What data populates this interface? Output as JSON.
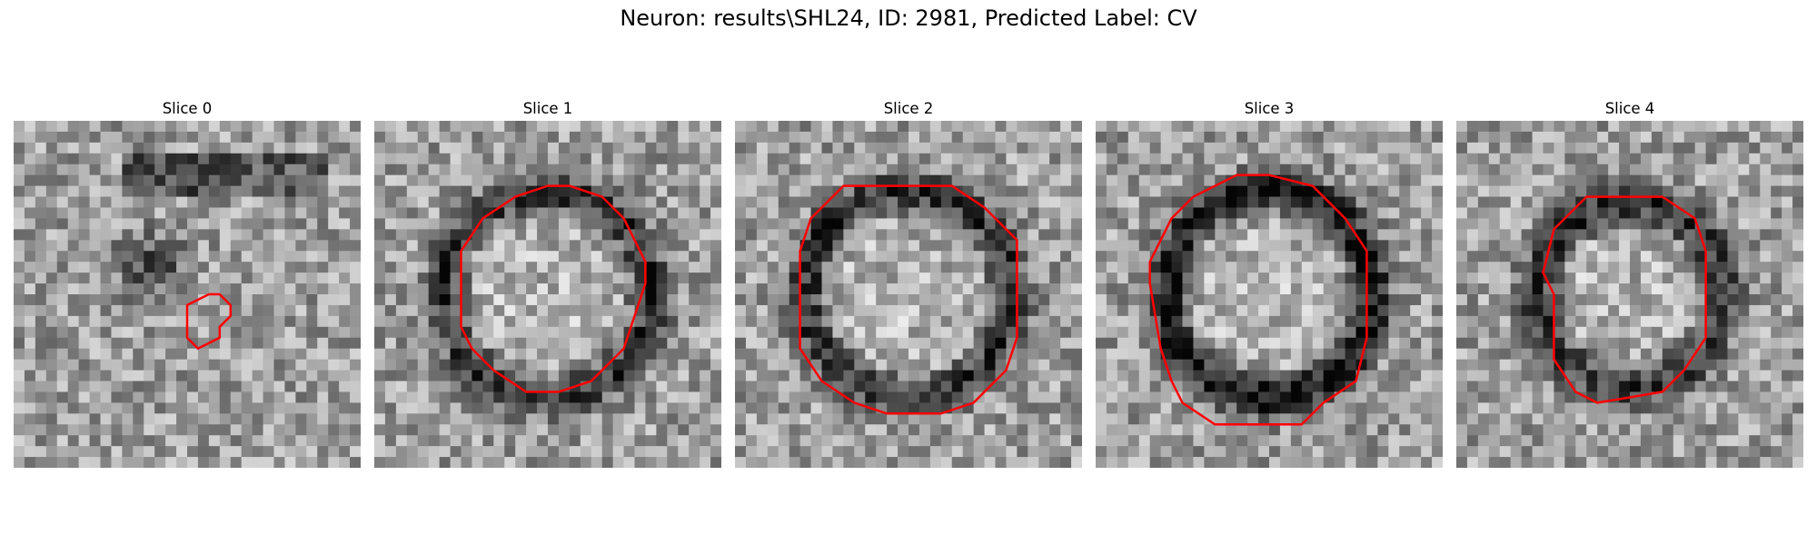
{
  "figure": {
    "title": "Neuron: results\\SHL24, ID: 2981, Predicted Label: CV"
  },
  "contour_color": "#ff0000",
  "colormap": "gray",
  "grid_size": 32,
  "slices": [
    {
      "label": "Slice 0",
      "pattern": "dark-band-top",
      "contour": [
        [
          16,
          17
        ],
        [
          18,
          16
        ],
        [
          19,
          16
        ],
        [
          20,
          17
        ],
        [
          20,
          18
        ],
        [
          19,
          19
        ],
        [
          19,
          20
        ],
        [
          17,
          21
        ],
        [
          16,
          20
        ]
      ]
    },
    {
      "label": "Slice 1",
      "pattern": "ring",
      "contour": [
        [
          13,
          7
        ],
        [
          16,
          6
        ],
        [
          18,
          6
        ],
        [
          21,
          7
        ],
        [
          23,
          9
        ],
        [
          24,
          11
        ],
        [
          25,
          13
        ],
        [
          25,
          15
        ],
        [
          24,
          18
        ],
        [
          23,
          21
        ],
        [
          20,
          24
        ],
        [
          17,
          25
        ],
        [
          14,
          25
        ],
        [
          11,
          23
        ],
        [
          9,
          21
        ],
        [
          8,
          19
        ],
        [
          8,
          12
        ],
        [
          10,
          9
        ]
      ]
    },
    {
      "label": "Slice 2",
      "pattern": "ring",
      "contour": [
        [
          10,
          6
        ],
        [
          20,
          6
        ],
        [
          23,
          8
        ],
        [
          26,
          11
        ],
        [
          26,
          20
        ],
        [
          25,
          23
        ],
        [
          22,
          26
        ],
        [
          19,
          27
        ],
        [
          14,
          27
        ],
        [
          11,
          26
        ],
        [
          8,
          24
        ],
        [
          6,
          21
        ],
        [
          6,
          12
        ],
        [
          7,
          9
        ]
      ]
    },
    {
      "label": "Slice 3",
      "pattern": "ring-dark",
      "contour": [
        [
          13,
          5
        ],
        [
          16,
          5
        ],
        [
          20,
          6
        ],
        [
          23,
          9
        ],
        [
          25,
          12
        ],
        [
          25,
          20
        ],
        [
          24,
          24
        ],
        [
          21,
          26
        ],
        [
          19,
          28
        ],
        [
          11,
          28
        ],
        [
          8,
          26
        ],
        [
          7,
          24
        ],
        [
          6,
          21
        ],
        [
          5,
          15
        ],
        [
          5,
          13
        ],
        [
          7,
          9
        ],
        [
          9,
          7
        ]
      ]
    },
    {
      "label": "Slice 4",
      "pattern": "ring-small",
      "contour": [
        [
          12,
          7
        ],
        [
          19,
          7
        ],
        [
          22,
          9
        ],
        [
          23,
          12
        ],
        [
          23,
          20
        ],
        [
          21,
          23
        ],
        [
          19,
          25
        ],
        [
          13,
          26
        ],
        [
          11,
          25
        ],
        [
          9,
          22
        ],
        [
          9,
          16
        ],
        [
          8,
          14
        ],
        [
          9,
          10
        ]
      ]
    }
  ]
}
